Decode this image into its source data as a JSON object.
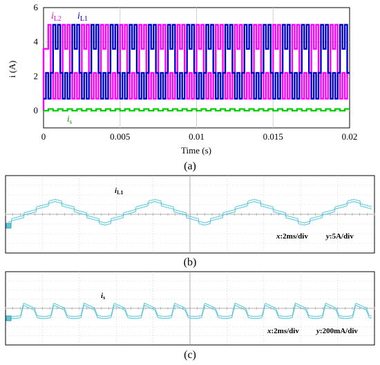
{
  "chart_data": [
    {
      "type": "line",
      "caption": "(a)",
      "xlabel": "Time (s)",
      "ylabel": "i (A)",
      "xlim": [
        0,
        0.02
      ],
      "ylim": [
        -1,
        6
      ],
      "x_ticks": [
        "0",
        "0.005",
        "0.01",
        "0.015",
        "0.02"
      ],
      "y_ticks": [
        "0",
        "2",
        "4",
        "6"
      ],
      "grid": true,
      "series": [
        {
          "name": "iL2",
          "color": "#ff00ff",
          "period_s": 0.00125,
          "levels": [
            0.7,
            2.2,
            3.6,
            5.0
          ]
        },
        {
          "name": "iL1",
          "color": "#0000cc",
          "period_s": 0.00125,
          "levels": [
            0.7,
            2.2,
            3.6,
            5.0
          ]
        },
        {
          "name": "is",
          "color": "#00cc00",
          "period_s": 0.000625,
          "levels": [
            0.0,
            0.1
          ]
        }
      ],
      "annotations": {
        "iL2": [
          "i",
          "L2"
        ],
        "iL1": [
          "i",
          "L1"
        ],
        "is": [
          "i",
          "s"
        ]
      }
    },
    {
      "type": "line",
      "caption": "(b)",
      "trace_label": [
        "i",
        "L1"
      ],
      "scale": {
        "x": "2ms/div",
        "y": "5A/div"
      },
      "color": "#5bc8d8"
    },
    {
      "type": "line",
      "caption": "(c)",
      "trace_label": [
        "i",
        "s"
      ],
      "scale": {
        "x": "2ms/div",
        "y": "200mA/div"
      },
      "color": "#5bc8d8"
    }
  ],
  "ui": {
    "scale_prefix": [
      "x",
      "y"
    ],
    "scale_sep": ":"
  }
}
